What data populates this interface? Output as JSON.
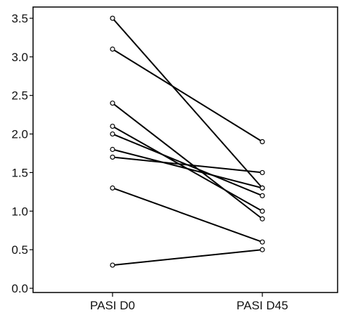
{
  "chart_data": {
    "type": "line",
    "title": "",
    "xlabel": "",
    "ylabel": "",
    "categories": [
      "PASI D0",
      "PASI D45"
    ],
    "ylim": [
      0.0,
      3.6
    ],
    "yticks": [
      "0.0",
      "0.5",
      "1.0",
      "1.5",
      "2.0",
      "2.5",
      "3.0",
      "3.5"
    ],
    "grid": false,
    "legend": "none",
    "series": [
      {
        "values": [
          3.5,
          1.3
        ]
      },
      {
        "values": [
          3.1,
          1.9
        ]
      },
      {
        "values": [
          2.4,
          0.9
        ]
      },
      {
        "values": [
          2.1,
          1.0
        ]
      },
      {
        "values": [
          2.0,
          1.2
        ]
      },
      {
        "values": [
          1.8,
          1.3
        ]
      },
      {
        "values": [
          1.7,
          1.5
        ]
      },
      {
        "values": [
          1.3,
          0.6
        ]
      },
      {
        "values": [
          0.3,
          0.5
        ]
      }
    ],
    "line_color": "#000000",
    "marker": "open-circle"
  }
}
